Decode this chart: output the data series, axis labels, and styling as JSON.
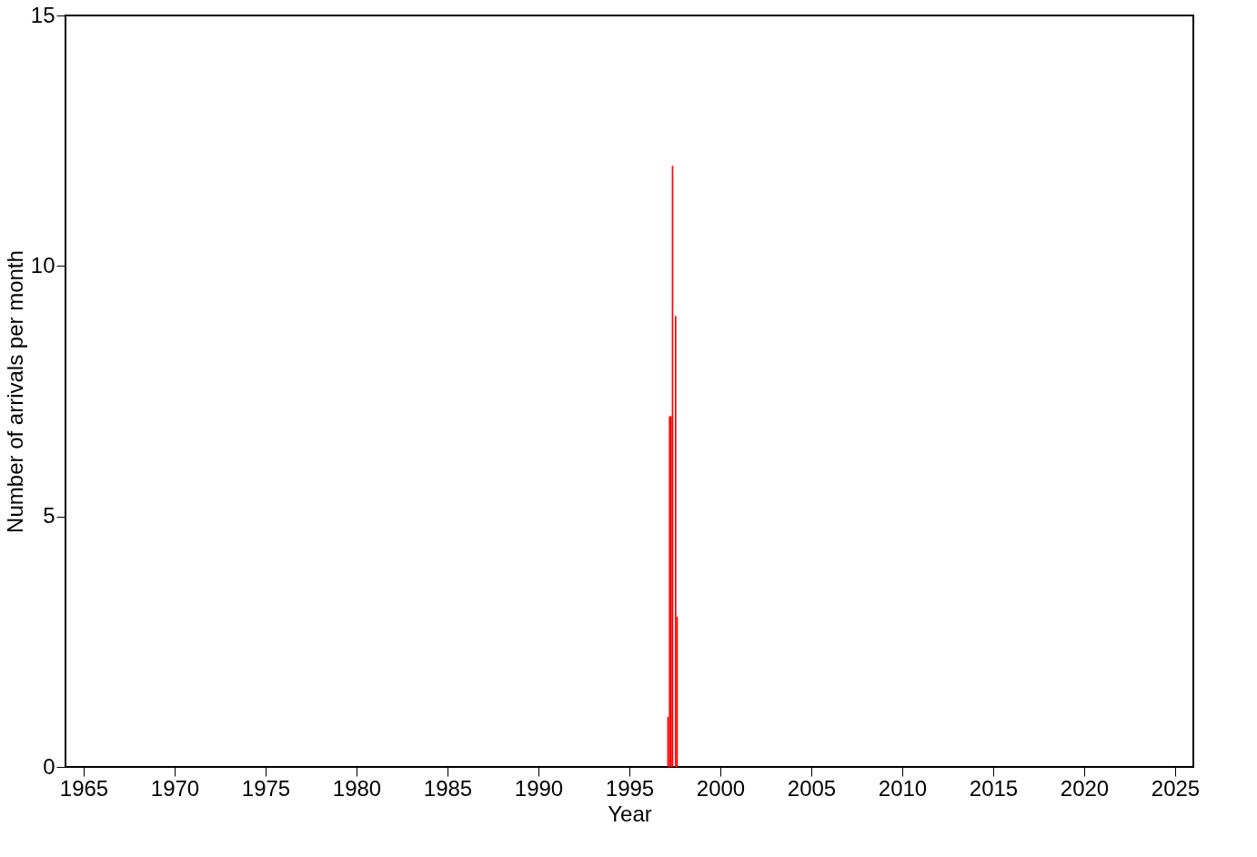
{
  "chart_data": {
    "type": "bar",
    "xlabel": "Year",
    "ylabel": "Number of arrivals per month",
    "x": [
      1997.08,
      1997.17,
      1997.25,
      1997.33,
      1997.5,
      1997.58
    ],
    "values": [
      1,
      7,
      7,
      12,
      9,
      3
    ],
    "color": "#ff0000",
    "xlim": [
      1964,
      2026
    ],
    "xticks": [
      1965,
      1970,
      1975,
      1980,
      1985,
      1990,
      1995,
      2000,
      2005,
      2010,
      2015,
      2020,
      2025
    ],
    "ylim": [
      0,
      15
    ],
    "yticks": [
      0,
      5,
      10,
      15
    ],
    "grid": false
  }
}
